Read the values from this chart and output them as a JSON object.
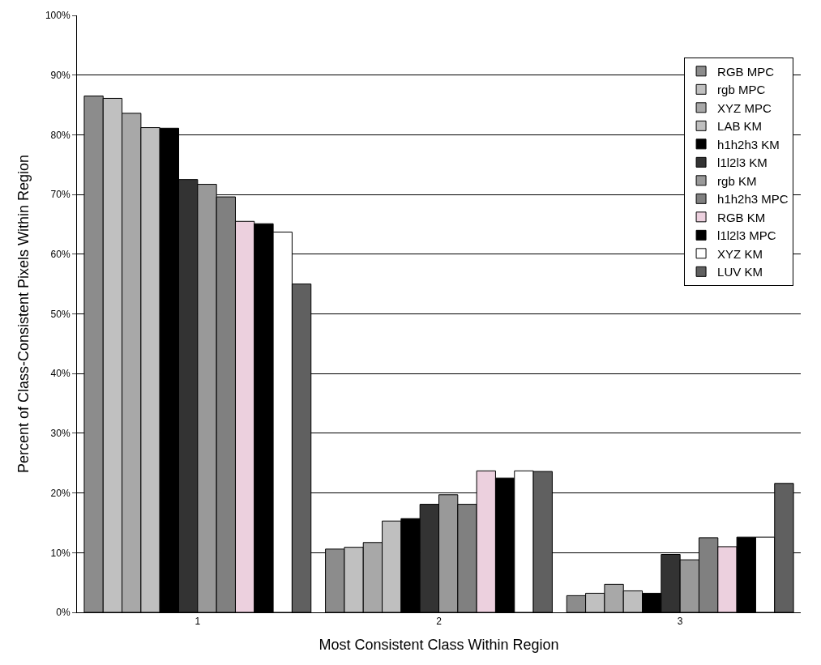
{
  "chart_data": {
    "type": "bar",
    "xlabel": "Most Consistent Class Within Region",
    "ylabel": "Percent of Class-Consistent Pixels Within Region",
    "categories": [
      "1",
      "2",
      "3"
    ],
    "series": [
      {
        "name": "RGB MPC",
        "color": "#8c8c8c",
        "values": [
          86.5,
          10.6,
          2.8
        ]
      },
      {
        "name": "rgb MPC",
        "color": "#c0c0c0",
        "values": [
          86.1,
          10.9,
          3.2
        ]
      },
      {
        "name": "XYZ MPC",
        "color": "#a8a8a8",
        "values": [
          83.6,
          11.7,
          4.7
        ]
      },
      {
        "name": "LAB KM",
        "color": "#bfbfbf",
        "values": [
          81.2,
          15.3,
          3.6
        ]
      },
      {
        "name": "h1h2h3 KM",
        "color": "#000000",
        "values": [
          81.1,
          15.7,
          3.2
        ]
      },
      {
        "name": "l1l2l3 KM",
        "color": "#333333",
        "values": [
          72.5,
          18.1,
          9.7
        ]
      },
      {
        "name": "rgb KM",
        "color": "#999999",
        "values": [
          71.7,
          19.7,
          8.8
        ]
      },
      {
        "name": "h1h2h3 MPC",
        "color": "#808080",
        "values": [
          69.6,
          18.1,
          12.5
        ]
      },
      {
        "name": "RGB KM",
        "color": "#ecd0de",
        "values": [
          65.5,
          23.7,
          11.0
        ]
      },
      {
        "name": "l1l2l3 MPC",
        "color": "#000000",
        "values": [
          65.1,
          22.5,
          12.6
        ]
      },
      {
        "name": "XYZ KM",
        "color": "#ffffff",
        "values": [
          63.7,
          23.7,
          12.6
        ]
      },
      {
        "name": "LUV KM",
        "color": "#606060",
        "values": [
          55.0,
          23.6,
          21.6
        ]
      }
    ],
    "ylim": [
      0,
      100
    ],
    "yticks": [
      {
        "value": 0,
        "label": "0%"
      },
      {
        "value": 10,
        "label": "10%"
      },
      {
        "value": 20,
        "label": "20%"
      },
      {
        "value": 30,
        "label": "30%"
      },
      {
        "value": 40,
        "label": "40%"
      },
      {
        "value": 50,
        "label": "50%"
      },
      {
        "value": 60,
        "label": "60%"
      },
      {
        "value": 70,
        "label": "70%"
      },
      {
        "value": 80,
        "label": "80%"
      },
      {
        "value": 90,
        "label": "90%"
      },
      {
        "value": 100,
        "label": "100%"
      }
    ],
    "grid": "y",
    "legend": "top right"
  }
}
